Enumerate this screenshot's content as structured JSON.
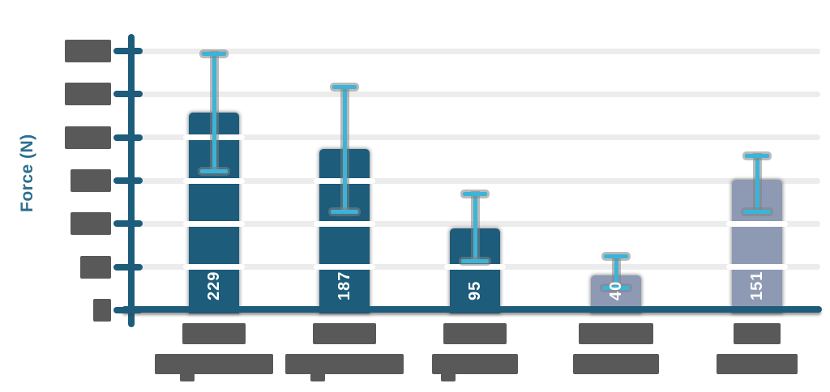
{
  "page": {
    "background": "#ffffff"
  },
  "chart_data": {
    "type": "bar",
    "title": "",
    "ylabel": "Force (N)",
    "xlabel": "",
    "ylim": [
      0,
      300
    ],
    "ytick_step": 50,
    "grid": true,
    "legend": "none",
    "error_bars": true,
    "yticks_redacted": true,
    "categories_redacted": true,
    "bars": [
      {
        "value": 229,
        "value_label": "229",
        "error_high": 297,
        "error_low": 161,
        "style": "dark"
      },
      {
        "value": 187,
        "value_label": "187",
        "error_high": 258,
        "error_low": 114,
        "style": "dark"
      },
      {
        "value": 95,
        "value_label": "95",
        "error_high": 135,
        "error_low": 57,
        "style": "dark"
      },
      {
        "value": 40,
        "value_label": "40",
        "error_high": 62,
        "error_low": 26,
        "style": "light"
      },
      {
        "value": 151,
        "value_label": "151",
        "error_high": 179,
        "error_low": 114,
        "style": "light"
      }
    ],
    "colors": {
      "bar_dark": "#1d5c7a",
      "bar_light": "#8e9ab4",
      "error_bar": "#3cb4d8",
      "axis": "#1d5c7a",
      "axis_label_text": "#2b6e8e",
      "bar_value_text": "#ffffff",
      "gridline": "#ececec",
      "redacted_block": "#595959"
    },
    "redacted_blocks": {
      "ytick_widths": [
        57,
        57,
        57,
        50,
        50,
        38,
        22
      ],
      "category_line_widths": [
        [
          78,
          146
        ],
        [
          78,
          146
        ],
        [
          78,
          106
        ],
        [
          92,
          106
        ],
        [
          58,
          100
        ]
      ]
    }
  }
}
